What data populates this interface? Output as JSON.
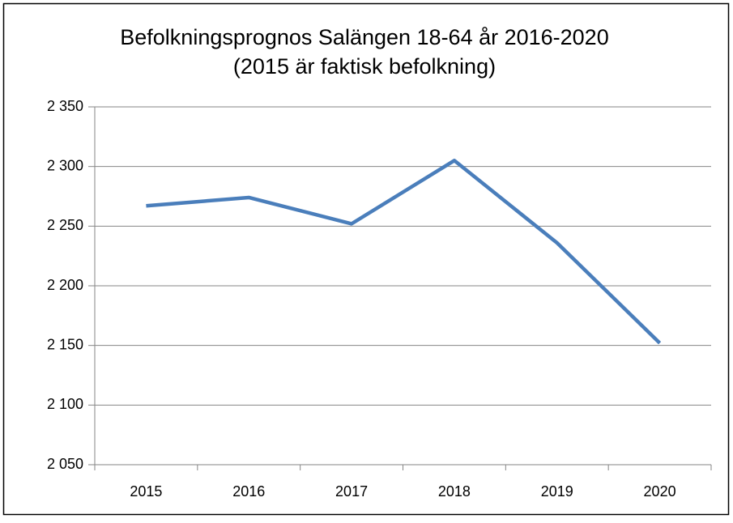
{
  "chart_data": {
    "type": "line",
    "title": "Befolkningsprognos Salängen 18-64 år 2016-2020 (2015 är faktisk befolkning)",
    "categories": [
      "2015",
      "2016",
      "2017",
      "2018",
      "2019",
      "2020"
    ],
    "series": [
      {
        "name": "18-64 år",
        "color": "#4a7ebb",
        "values": [
          2267,
          2274,
          2252,
          2305,
          2236,
          2152
        ]
      }
    ],
    "ylim": [
      2050,
      2350
    ],
    "yticks": [
      {
        "value": 2050,
        "label": "2 050"
      },
      {
        "value": 2100,
        "label": "2 100"
      },
      {
        "value": 2150,
        "label": "2 150"
      },
      {
        "value": 2200,
        "label": "2 200"
      },
      {
        "value": 2250,
        "label": "2 250"
      },
      {
        "value": 2300,
        "label": "2 300"
      },
      {
        "value": 2350,
        "label": "2 350"
      }
    ],
    "grid": true,
    "legend": false
  }
}
